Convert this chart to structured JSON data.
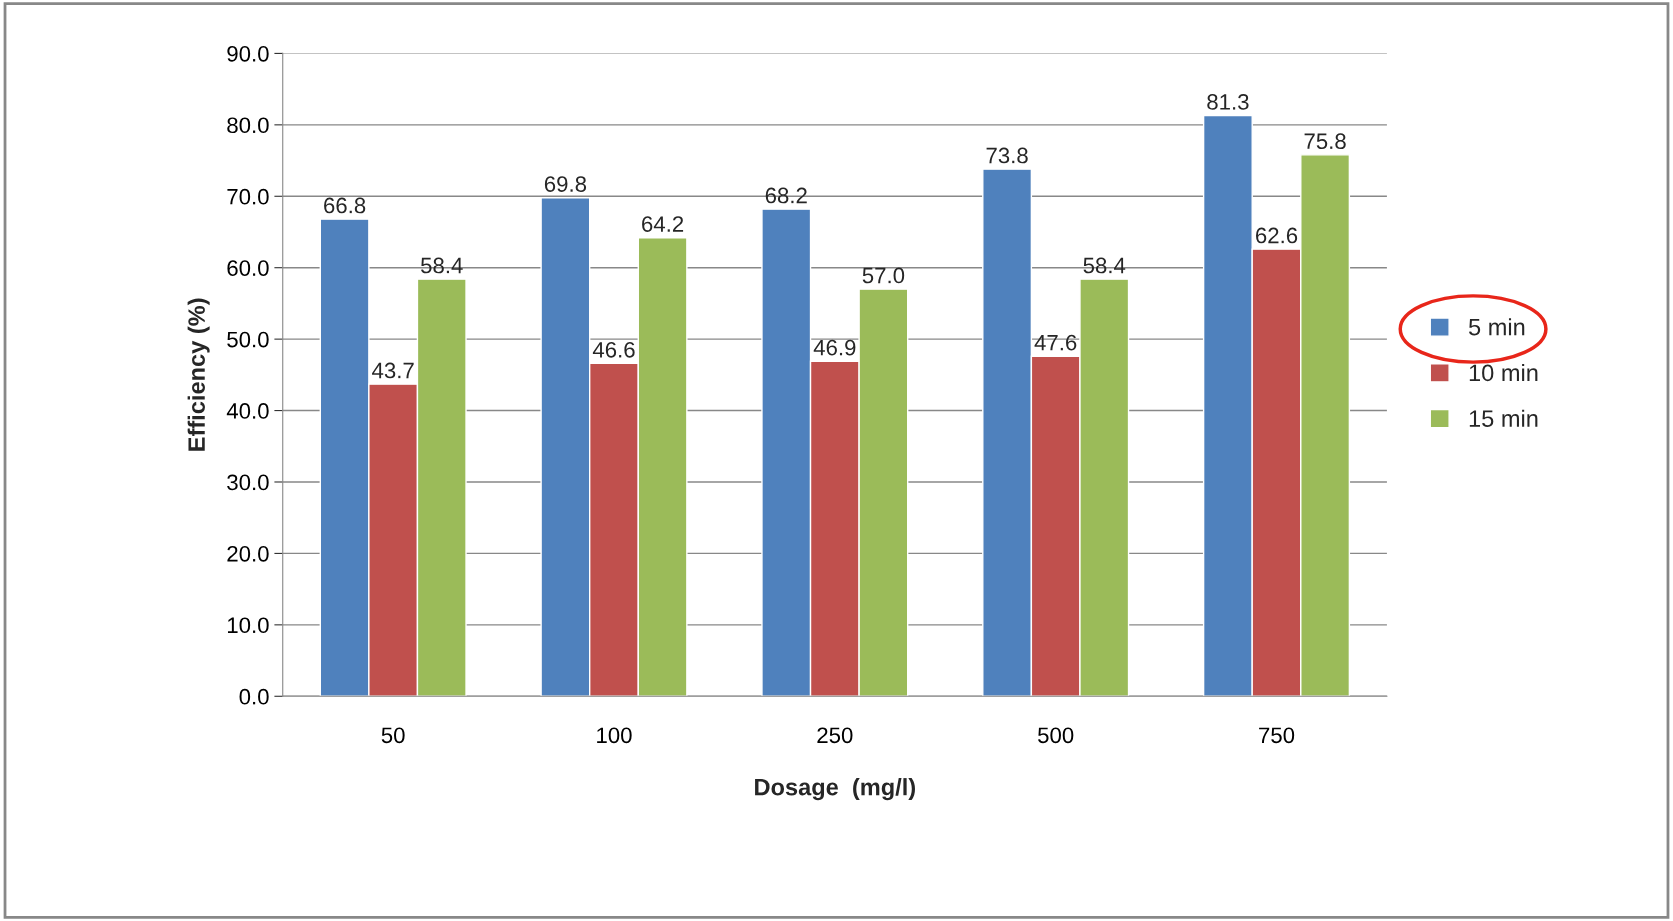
{
  "chart_data": {
    "type": "bar",
    "xlabel": "Dosage  (mg/l)",
    "ylabel": "Efficiency (%)",
    "categories": [
      "50",
      "100",
      "250",
      "500",
      "750"
    ],
    "series": [
      {
        "name": "5 min",
        "color": "#4f81bd",
        "values": [
          66.8,
          69.8,
          68.2,
          73.8,
          81.3
        ],
        "value_labels": [
          "66.8",
          "69.8",
          "68.2",
          "73.8",
          "81.3"
        ]
      },
      {
        "name": "10 min",
        "color": "#c0504d",
        "values": [
          43.7,
          46.6,
          46.9,
          47.6,
          62.6
        ],
        "value_labels": [
          "43.7",
          "46.6",
          "46.9",
          "47.6",
          "62.6"
        ]
      },
      {
        "name": "15 min",
        "color": "#9bbb59",
        "values": [
          58.4,
          64.2,
          57,
          58.4,
          75.8
        ],
        "value_labels": [
          "58.4",
          "64.2",
          "57.0",
          "58.4",
          "75.8"
        ]
      }
    ],
    "ylim": [
      0,
      90
    ],
    "yticks": [
      {
        "value": 0,
        "label": "0.0"
      },
      {
        "value": 10,
        "label": "10.0"
      },
      {
        "value": 20,
        "label": "20.0"
      },
      {
        "value": 30,
        "label": "30.0"
      },
      {
        "value": 40,
        "label": "40.0"
      },
      {
        "value": 50,
        "label": "50.0"
      },
      {
        "value": 60,
        "label": "60.0"
      },
      {
        "value": 70,
        "label": "70.0"
      },
      {
        "value": 80,
        "label": "80.0"
      },
      {
        "value": 90,
        "label": "90.0"
      }
    ],
    "grid": "y",
    "legend": "right"
  }
}
